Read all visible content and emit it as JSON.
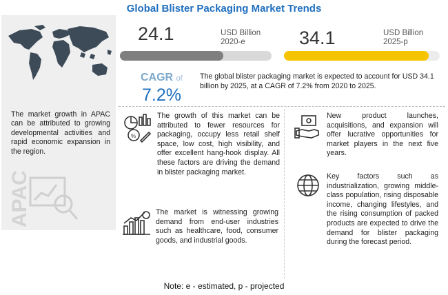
{
  "title": "Global Blister Packaging Market Trends",
  "metrics": {
    "start": {
      "value": "24.1",
      "unit": "USD Billion",
      "period": "2020-e",
      "fill_fraction": 0.68,
      "color": "#7f7f7f"
    },
    "end": {
      "value": "34.1",
      "unit": "USD Billion",
      "period": "2025-p",
      "fill_fraction": 0.93,
      "color": "#f5c400"
    }
  },
  "cagr": {
    "label": "CAGR",
    "of": "of",
    "value": "7.2%"
  },
  "summary": "The global blister packaging market is expected to account for USD 34.1 billion by 2025, at a CAGR of 7.2% from 2020 to 2025.",
  "apac": {
    "text": "The market growth in APAC can be attributed to growing developmental activities and rapid economic expansion in the region.",
    "watermark": "APAC"
  },
  "cards": {
    "drivers": "The growth of this market can be attributed to fewer resources for packaging, occupy less retail shelf space, low cost, high visibility, and offer excellent hang-hook display. All these factors are driving the demand in blister packaging market.",
    "demand": "The market is witnessing growing demand from end-user industries such as healthcare, food, consumer goods, and industrial goods.",
    "opportunities": "New product launches, acquisitions, and expansion will offer lucrative opportunities for market players in the next five years.",
    "factors": "Key factors such as industrialization, growing middle-class population, rising disposable income, changing lifestyles, and the rising consumption of packed products are expected to drive the demand for blister packaging during the forecast period."
  },
  "note": "Note: e - estimated, p - projected"
}
